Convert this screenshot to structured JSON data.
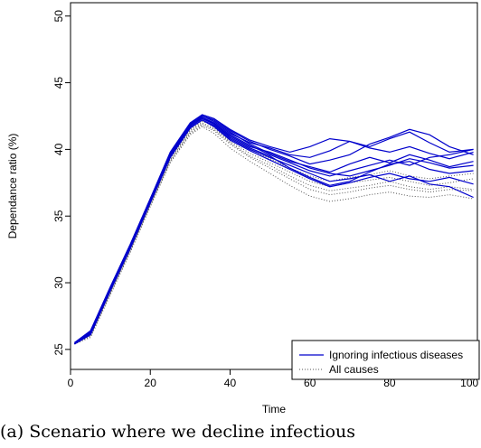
{
  "chart_data": {
    "type": "line",
    "xlabel": "Time",
    "ylabel": "Dependance ratio (%)",
    "xlim": [
      0,
      102
    ],
    "ylim": [
      23.5,
      51
    ],
    "xticks": [
      0,
      20,
      40,
      60,
      80,
      100
    ],
    "yticks": [
      25,
      30,
      35,
      40,
      45,
      50
    ],
    "grid": false,
    "legend_position": "bottom-right",
    "legend": [
      {
        "label": "Ignoring infectious diseases",
        "style": "solid",
        "color": "#0000cc"
      },
      {
        "label": "All causes",
        "style": "dotted",
        "color": "#555555"
      }
    ],
    "x": [
      1,
      5,
      10,
      15,
      20,
      25,
      30,
      33,
      36,
      40,
      45,
      50,
      55,
      60,
      65,
      70,
      75,
      80,
      85,
      90,
      95,
      101
    ],
    "series": [
      {
        "group": "ignoring",
        "values": [
          25.5,
          26.3,
          29.6,
          32.8,
          36.2,
          39.6,
          41.7,
          42.4,
          41.9,
          41.0,
          40.2,
          39.8,
          39.2,
          38.6,
          38.2,
          38.0,
          38.4,
          38.8,
          39.3,
          39.0,
          38.6,
          38.8
        ]
      },
      {
        "group": "ignoring",
        "values": [
          25.4,
          26.2,
          29.5,
          32.7,
          36.1,
          39.5,
          41.8,
          42.5,
          42.1,
          41.2,
          40.5,
          40.1,
          39.6,
          39.4,
          39.9,
          40.6,
          40.2,
          40.8,
          41.3,
          40.5,
          39.8,
          40.0
        ]
      },
      {
        "group": "ignoring",
        "values": [
          25.5,
          26.4,
          29.7,
          32.9,
          36.3,
          39.8,
          42.0,
          42.6,
          42.3,
          41.4,
          40.6,
          40.0,
          39.5,
          38.9,
          39.2,
          39.6,
          40.4,
          40.9,
          41.5,
          41.1,
          40.2,
          39.6
        ]
      },
      {
        "group": "ignoring",
        "values": [
          25.4,
          26.1,
          29.4,
          32.6,
          36.0,
          39.4,
          41.6,
          42.2,
          41.8,
          40.8,
          40.0,
          39.4,
          38.8,
          38.2,
          37.6,
          37.8,
          38.1,
          37.6,
          38.0,
          37.4,
          37.2,
          36.4
        ]
      },
      {
        "group": "ignoring",
        "values": [
          25.5,
          26.3,
          29.6,
          32.8,
          36.2,
          39.7,
          41.9,
          42.4,
          42.0,
          41.1,
          40.3,
          39.6,
          39.0,
          38.4,
          38.0,
          38.4,
          38.8,
          39.2,
          38.8,
          39.4,
          39.6,
          40.0
        ]
      },
      {
        "group": "ignoring",
        "values": [
          25.4,
          26.2,
          29.5,
          32.7,
          36.1,
          39.5,
          41.7,
          42.3,
          41.9,
          40.9,
          40.1,
          39.5,
          38.6,
          37.9,
          37.3,
          37.6,
          38.3,
          38.9,
          39.1,
          38.5,
          38.2,
          38.4
        ]
      },
      {
        "group": "ignoring",
        "values": [
          25.5,
          26.4,
          29.7,
          32.9,
          36.3,
          39.6,
          41.8,
          42.5,
          42.2,
          41.3,
          40.4,
          39.7,
          39.1,
          38.7,
          38.3,
          38.9,
          39.4,
          39.0,
          39.6,
          39.2,
          38.7,
          39.1
        ]
      },
      {
        "group": "ignoring",
        "values": [
          25.4,
          26.1,
          29.5,
          32.6,
          36.0,
          39.4,
          41.6,
          42.2,
          41.7,
          40.7,
          39.9,
          39.2,
          38.5,
          37.8,
          37.2,
          37.5,
          37.9,
          38.2,
          37.8,
          37.6,
          37.9,
          37.4
        ]
      },
      {
        "group": "ignoring",
        "values": [
          25.5,
          26.3,
          29.6,
          32.8,
          36.2,
          39.7,
          41.9,
          42.6,
          42.3,
          41.5,
          40.7,
          40.2,
          39.8,
          40.2,
          40.8,
          40.6,
          40.1,
          39.8,
          40.2,
          39.7,
          39.3,
          39.8
        ]
      },
      {
        "group": "all_causes",
        "values": [
          25.4,
          26.0,
          29.2,
          32.4,
          35.8,
          39.1,
          41.2,
          41.8,
          41.4,
          40.4,
          39.4,
          38.6,
          37.8,
          37.0,
          36.6,
          36.8,
          37.1,
          37.3,
          37.0,
          36.8,
          37.0,
          36.9
        ]
      },
      {
        "group": "all_causes",
        "values": [
          25.5,
          26.1,
          29.3,
          32.5,
          35.9,
          39.2,
          41.4,
          42.0,
          41.6,
          40.6,
          39.7,
          39.0,
          38.3,
          37.6,
          37.2,
          37.5,
          37.7,
          37.9,
          37.6,
          37.3,
          37.5,
          37.8
        ]
      },
      {
        "group": "all_causes",
        "values": [
          25.4,
          25.9,
          29.1,
          32.3,
          35.7,
          39.0,
          41.1,
          41.7,
          41.2,
          40.1,
          39.1,
          38.2,
          37.3,
          36.5,
          36.1,
          36.3,
          36.6,
          36.8,
          36.5,
          36.4,
          36.6,
          36.3
        ]
      },
      {
        "group": "all_causes",
        "values": [
          25.5,
          26.2,
          29.4,
          32.6,
          36.0,
          39.3,
          41.5,
          42.1,
          41.8,
          40.8,
          40.0,
          39.3,
          38.6,
          38.0,
          37.6,
          37.9,
          38.1,
          38.4,
          38.0,
          37.8,
          38.0,
          38.2
        ]
      },
      {
        "group": "all_causes",
        "values": [
          25.4,
          26.0,
          29.2,
          32.4,
          35.8,
          39.1,
          41.3,
          41.9,
          41.5,
          40.5,
          39.5,
          38.8,
          38.0,
          37.3,
          36.9,
          37.1,
          37.3,
          37.6,
          37.2,
          37.0,
          37.2,
          37.0
        ]
      }
    ]
  },
  "caption": "(a) Scenario where we decline infectious"
}
